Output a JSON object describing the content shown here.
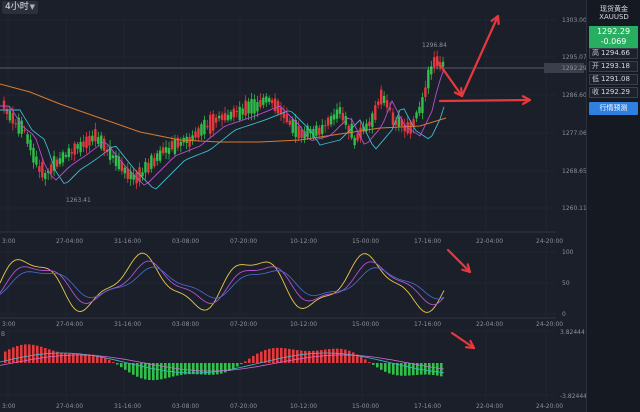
{
  "toolbar": {
    "timeframe": "4小时"
  },
  "sidebar": {
    "title": "现货黄金",
    "symbol": "XAUUSD",
    "price": "1292.29",
    "change": "-0.069",
    "rows": [
      {
        "label": "高",
        "value": "1294.66"
      },
      {
        "label": "开",
        "value": "1293.18"
      },
      {
        "label": "低",
        "value": "1291.08"
      },
      {
        "label": "收",
        "value": "1292.29"
      }
    ],
    "forecast_button": "行情预测"
  },
  "colors": {
    "background": "#1b1f2a",
    "grid": "#262b36",
    "up": "#e5393d",
    "down": "#2fbf4a",
    "ma_orange": "#d87a2c",
    "ma_cyan": "#3fb9c9",
    "ma_purple": "#b44fd0",
    "kdj_yellow": "#e8c84a",
    "arrow": "#e5393d",
    "accent_green": "#27ae60",
    "accent_blue": "#2f7fe0"
  },
  "chart_data": [
    {
      "type": "candlestick",
      "panel": "price",
      "y_axis_labels": [
        "1303.00",
        "1295.07",
        "1286.60",
        "1277.06",
        "1268.65",
        "1260.11"
      ],
      "x_axis_labels": [
        "3:00",
        "27-04:00",
        "31-16:00",
        "03-08:00",
        "07-20:00",
        "10-12:00",
        "15-00:00",
        "17-16:00",
        "22-04:00",
        "24-20:00"
      ],
      "current_price_label": "1292.29",
      "annotations": [
        "1296.84",
        "1263.41"
      ]
    },
    {
      "type": "line",
      "panel": "oscillator",
      "y_axis_labels": [
        "100",
        "50",
        "0"
      ],
      "x_axis_labels": [
        "3:00",
        "27-04:00",
        "31-16:00",
        "03-08:00",
        "07-20:00",
        "10-12:00",
        "15-00:00",
        "17-16:00",
        "22-04:00",
        "24-20:00"
      ]
    },
    {
      "type": "bar",
      "panel": "macd",
      "label": "B",
      "y_axis_labels": [
        "3.82444",
        "-3.82444"
      ],
      "x_axis_labels": [
        "3:00",
        "27-04:00",
        "31-16:00",
        "03-08:00",
        "07-20:00",
        "10-12:00",
        "15-00:00",
        "17-16:00",
        "22-04:00",
        "24-20:00"
      ]
    }
  ]
}
